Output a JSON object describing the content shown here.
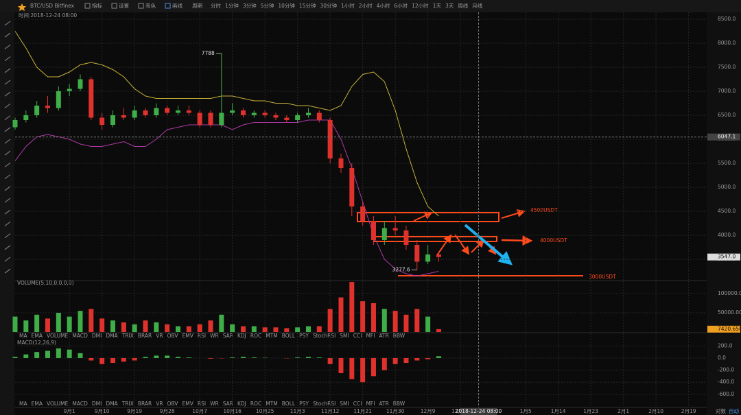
{
  "toolbar": {
    "symbol": "BTC/USD Bitfinex",
    "buttons": [
      "指标",
      "设置",
      "亮色",
      "画线"
    ],
    "period_label": "周期",
    "periods": [
      "分时",
      "1分钟",
      "3分钟",
      "5分钟",
      "10分钟",
      "15分钟",
      "30分钟",
      "1小时",
      "2小时",
      "4小时",
      "6小时",
      "12小时",
      "1天",
      "3天",
      "周线",
      "月线"
    ],
    "active_period": 12
  },
  "info": "时间:2018-12-24 08:00",
  "volume_title": "VOLUME(5,10,0,0,0,0)",
  "macd_title": "MACD(12,26,9)",
  "indicator_tabs": [
    "MA",
    "EMA",
    "VOLUME",
    "MACD",
    "DMI",
    "DMA",
    "TRIX",
    "BRAR",
    "VR",
    "OBV",
    "EMV",
    "RSI",
    "WR",
    "SAR",
    "KDJ",
    "ROC",
    "MTM",
    "BOLL",
    "PSY",
    "StochRSI",
    "SMI",
    "CCI",
    "MFI",
    "ATR",
    "BBW"
  ],
  "active_tabs": [
    2,
    3
  ],
  "targets": [
    "4500USDT",
    "4000USDT",
    "3000USDT"
  ],
  "axis_modes": [
    "对数",
    "自动"
  ],
  "chart_data": [
    {
      "type": "candlestick",
      "up_color": "#3fae49",
      "down_color": "#e0322d",
      "x": [
        0,
        3,
        6,
        9,
        12,
        15,
        18,
        21,
        24,
        27,
        30,
        33,
        36,
        39,
        42,
        45,
        48,
        51,
        54,
        57,
        60,
        63,
        66,
        69,
        72,
        75,
        78,
        81,
        84,
        87,
        90,
        93,
        96,
        99,
        102,
        105,
        108,
        111,
        114,
        117
      ],
      "open": [
        6250,
        6400,
        6500,
        6700,
        6650,
        7000,
        7050,
        7250,
        6450,
        6300,
        6500,
        6450,
        6600,
        6500,
        6650,
        6550,
        6600,
        6550,
        6550,
        6300,
        6550,
        6600,
        6500,
        6550,
        6500,
        6450,
        6400,
        6500,
        6550,
        6400,
        5600,
        5400,
        4600,
        4300,
        3900,
        4150,
        4100,
        3800,
        3450,
        3600
      ],
      "high": [
        6450,
        6600,
        6800,
        6900,
        7100,
        7150,
        7350,
        7300,
        6550,
        6600,
        6650,
        6700,
        6650,
        6750,
        6700,
        6700,
        6700,
        6600,
        6600,
        7788,
        6750,
        6650,
        6600,
        6600,
        6550,
        6500,
        6550,
        6650,
        6600,
        6450,
        5700,
        5500,
        4700,
        4400,
        4300,
        4400,
        4200,
        3900,
        3800,
        3650
      ],
      "low": [
        6200,
        6350,
        6450,
        6550,
        6600,
        6900,
        7000,
        6400,
        6200,
        6250,
        6400,
        6400,
        6450,
        6450,
        6500,
        6500,
        6500,
        6250,
        6250,
        6250,
        6500,
        6450,
        6450,
        6450,
        6400,
        6350,
        6350,
        6450,
        6350,
        5500,
        5300,
        4400,
        4200,
        3800,
        3800,
        4000,
        3700,
        3277.6,
        3400,
        3450
      ],
      "close": [
        6400,
        6500,
        6700,
        6650,
        7000,
        7050,
        7250,
        6450,
        6300,
        6500,
        6450,
        6600,
        6500,
        6650,
        6550,
        6600,
        6550,
        6300,
        6300,
        6550,
        6600,
        6500,
        6550,
        6500,
        6450,
        6400,
        6500,
        6550,
        6400,
        5600,
        5400,
        4600,
        4300,
        3900,
        4150,
        4100,
        3800,
        3450,
        3600,
        3547
      ],
      "lines": [
        {
          "color": "#c9b23a",
          "values": [
            8250,
            7900,
            7500,
            7300,
            7300,
            7400,
            7550,
            7600,
            7550,
            7450,
            7300,
            7050,
            6900,
            6850,
            6850,
            6850,
            6850,
            6850,
            6850,
            6900,
            6900,
            6850,
            6800,
            6800,
            6750,
            6750,
            6700,
            6700,
            6650,
            6600,
            6700,
            7100,
            7350,
            7400,
            7200,
            6600,
            5800,
            5100,
            4600,
            4400
          ]
        },
        {
          "color": "#b03aa8",
          "values": [
            5550,
            5850,
            6050,
            6100,
            6050,
            6000,
            5900,
            5850,
            5850,
            5900,
            5950,
            5850,
            5850,
            6000,
            6200,
            6250,
            6300,
            6300,
            6300,
            6300,
            6200,
            6300,
            6350,
            6350,
            6350,
            6350,
            6350,
            6400,
            6400,
            6400,
            6000,
            5400,
            4700,
            4000,
            3500,
            3300,
            3200,
            3150,
            3200,
            3250
          ]
        }
      ],
      "ylim": [
        3071,
        8643
      ],
      "yticks": [
        {
          "value": 3500,
          "label": "3500.0"
        },
        {
          "value": 4000,
          "label": "4000.0"
        },
        {
          "value": 4500,
          "label": "4500.0"
        },
        {
          "value": 5000,
          "label": "5000.0"
        },
        {
          "value": 5500,
          "label": "5500.0"
        },
        {
          "value": 6000,
          "label": "6000.0"
        },
        {
          "value": 6500,
          "label": "6500.0"
        },
        {
          "value": 7000,
          "label": "7000.0"
        },
        {
          "value": 7500,
          "label": "7500.0"
        },
        {
          "value": 8000,
          "label": "8000.0"
        },
        {
          "value": 8500,
          "label": "8500.0"
        }
      ],
      "price_markers": [
        {
          "value": 6047.1,
          "label": "6047.1"
        },
        {
          "value": 3547,
          "label": "3547.0"
        }
      ],
      "annotations": [
        {
          "x": 57,
          "y": 7788
        },
        {
          "x": 111,
          "y": 3277.6
        }
      ]
    },
    {
      "type": "bar",
      "x": [
        0,
        3,
        6,
        9,
        12,
        15,
        18,
        21,
        24,
        27,
        30,
        33,
        36,
        39,
        42,
        45,
        48,
        51,
        54,
        57,
        60,
        63,
        66,
        69,
        72,
        75,
        78,
        81,
        84,
        87,
        90,
        93,
        96,
        99,
        102,
        105,
        108,
        111,
        114,
        117
      ],
      "values": [
        40000,
        30000,
        45000,
        35000,
        50000,
        40000,
        55000,
        60000,
        35000,
        30000,
        25000,
        20000,
        30000,
        25000,
        20000,
        15000,
        15000,
        20000,
        30000,
        45000,
        20000,
        15000,
        15000,
        12000,
        12000,
        10000,
        12000,
        15000,
        15000,
        60000,
        90000,
        130000,
        80000,
        75000,
        60000,
        55000,
        45000,
        60000,
        40000,
        7420.6509
      ],
      "ylim": [
        0,
        132000
      ],
      "yticks": [
        {
          "value": 50000,
          "label": "50000.00"
        },
        {
          "value": 100000,
          "label": "100000.00"
        }
      ]
    },
    {
      "type": "bar",
      "x": [
        0,
        3,
        6,
        9,
        12,
        15,
        18,
        21,
        24,
        27,
        30,
        33,
        36,
        39,
        42,
        45,
        48,
        51,
        54,
        57,
        60,
        63,
        66,
        69,
        72,
        75,
        78,
        81,
        84,
        87,
        90,
        93,
        96,
        99,
        102,
        105,
        108,
        111,
        114,
        117
      ],
      "values": [
        20,
        60,
        100,
        120,
        160,
        140,
        80,
        -40,
        -100,
        -80,
        -60,
        -40,
        20,
        40,
        40,
        20,
        10,
        0,
        -10,
        -5,
        10,
        20,
        10,
        5,
        0,
        -5,
        10,
        20,
        10,
        -100,
        -250,
        -350,
        -400,
        -300,
        -200,
        -100,
        -80,
        -40,
        -20,
        30
      ],
      "ylim": [
        -863,
        272
      ],
      "yticks": [
        {
          "value": 200,
          "label": "200.0"
        },
        {
          "value": 0,
          "label": "0.0"
        },
        {
          "value": -200,
          "label": "-200.0"
        },
        {
          "value": -400,
          "label": "-400.0"
        },
        {
          "value": -600,
          "label": "-600.0"
        }
      ],
      "xlim": [
        0,
        191
      ],
      "xticks": [
        {
          "value": 15,
          "label": "9月1"
        },
        {
          "value": 24,
          "label": "9月10"
        },
        {
          "value": 33,
          "label": "9月19"
        },
        {
          "value": 42,
          "label": "9月28"
        },
        {
          "value": 51,
          "label": "10月7"
        },
        {
          "value": 60,
          "label": "10月16"
        },
        {
          "value": 69,
          "label": "10月25"
        },
        {
          "value": 78,
          "label": "11月3"
        },
        {
          "value": 87,
          "label": "11月12"
        },
        {
          "value": 96,
          "label": "11月21"
        },
        {
          "value": 105,
          "label": "11月30"
        },
        {
          "value": 114,
          "label": "12月9"
        },
        {
          "value": 123,
          "label": "12月18"
        },
        {
          "value": 141,
          "label": "1月5"
        },
        {
          "value": 150,
          "label": "1月14"
        },
        {
          "value": 159,
          "label": "1月23"
        },
        {
          "value": 168,
          "label": "2月1"
        },
        {
          "value": 177,
          "label": "2月10"
        },
        {
          "value": 186,
          "label": "2月19"
        }
      ],
      "crosshair": {
        "x": 128,
        "label": "2018-12-24 08:00"
      }
    }
  ]
}
